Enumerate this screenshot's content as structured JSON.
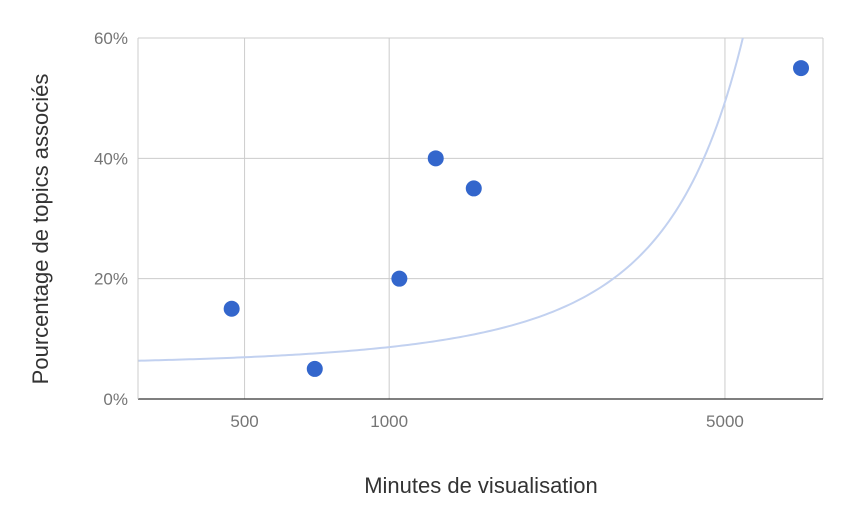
{
  "chart_data": {
    "type": "scatter",
    "x_scale": "log",
    "xlabel": "Minutes de visualisation",
    "ylabel": "Pourcentage de topics associés",
    "xlim": [
      300,
      8000
    ],
    "ylim": [
      0,
      60
    ],
    "x_ticks": [
      500,
      1000,
      5000
    ],
    "x_tick_labels": [
      "500",
      "1000",
      "5000"
    ],
    "y_ticks": [
      0,
      20,
      40,
      60
    ],
    "y_tick_labels": [
      "0%",
      "20%",
      "40%",
      "60%"
    ],
    "grid": true,
    "points": [
      {
        "x": 470,
        "y": 15
      },
      {
        "x": 700,
        "y": 5
      },
      {
        "x": 1050,
        "y": 20
      },
      {
        "x": 1250,
        "y": 40
      },
      {
        "x": 1500,
        "y": 35
      },
      {
        "x": 7200,
        "y": 55
      }
    ],
    "trendline": {
      "type": "exponential",
      "a": 5.58,
      "b": 0.000436
    },
    "colors": {
      "points": "#3366cc",
      "trendline": "#c2d1f0",
      "grid": "#cccccc",
      "axis": "#333333"
    }
  }
}
